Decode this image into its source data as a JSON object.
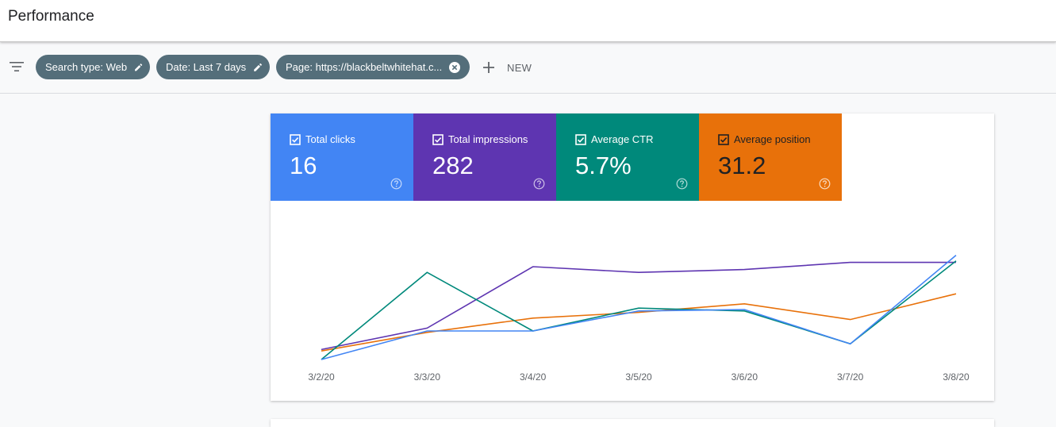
{
  "page": {
    "title": "Performance"
  },
  "filters": {
    "chips": [
      {
        "label": "Search type: Web",
        "icon": "pencil-icon"
      },
      {
        "label": "Date: Last 7 days",
        "icon": "pencil-icon"
      },
      {
        "label": "Page: https://blackbeltwhitehat.c...",
        "icon": "close-circle-icon"
      }
    ],
    "new_label": "NEW"
  },
  "metrics": [
    {
      "label": "Total clicks",
      "value": "16",
      "color": "#4285f4",
      "text_color": "#ffffff"
    },
    {
      "label": "Total impressions",
      "value": "282",
      "color": "#5e35b1",
      "text_color": "#ffffff"
    },
    {
      "label": "Average CTR",
      "value": "5.7%",
      "color": "#00897b",
      "text_color": "#ffffff"
    },
    {
      "label": "Average position",
      "value": "31.2",
      "color": "#e8710a",
      "text_color": "#202124"
    }
  ],
  "chart_data": {
    "type": "line",
    "x": [
      "3/2/20",
      "3/3/20",
      "3/4/20",
      "3/5/20",
      "3/6/20",
      "3/7/20",
      "3/8/20"
    ],
    "series": [
      {
        "name": "Total clicks",
        "color": "#4285f4",
        "values": [
          0.0,
          0.2,
          0.2,
          0.34,
          0.35,
          0.11,
          0.73
        ]
      },
      {
        "name": "Total impressions",
        "color": "#5e35b1",
        "values": [
          0.07,
          0.22,
          0.65,
          0.61,
          0.63,
          0.68,
          0.68
        ]
      },
      {
        "name": "Average CTR",
        "color": "#00897b",
        "values": [
          0.0,
          0.61,
          0.2,
          0.36,
          0.34,
          0.11,
          0.69
        ]
      },
      {
        "name": "Average position",
        "color": "#e8710a",
        "values": [
          0.06,
          0.19,
          0.29,
          0.33,
          0.39,
          0.28,
          0.46
        ]
      }
    ],
    "ylim": [
      0,
      1
    ],
    "grid": false,
    "legend": "none"
  }
}
